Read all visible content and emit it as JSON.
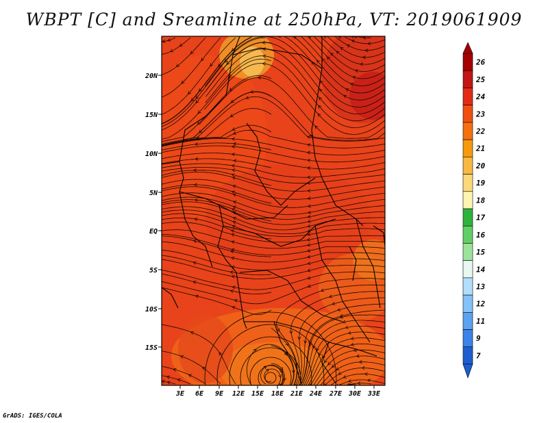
{
  "title": "WBPT [C] and Sreamline at 250hPa, VT: 2019061909",
  "credit": "GrADS: IGES/COLA",
  "map": {
    "lat_labels": [
      "20N",
      "15N",
      "10N",
      "5N",
      "EQ",
      "5S",
      "10S",
      "15S"
    ],
    "lon_labels": [
      "3E",
      "6E",
      "9E",
      "12E",
      "15E",
      "18E",
      "21E",
      "24E",
      "27E",
      "30E",
      "33E"
    ]
  },
  "colorbar": {
    "labels": [
      "26",
      "25",
      "24",
      "23",
      "22",
      "21",
      "20",
      "19",
      "18",
      "17",
      "16",
      "15",
      "14",
      "13",
      "12",
      "11",
      "9",
      "7"
    ],
    "colors": [
      "#a50000",
      "#c31616",
      "#e22b14",
      "#f0500f",
      "#f57010",
      "#f5990e",
      "#f7b943",
      "#fbd97a",
      "#fdf4b1",
      "#2fb33b",
      "#62cf66",
      "#9ce39a",
      "#e6f8f0",
      "#b3defb",
      "#84c2f8",
      "#5ba2f1",
      "#3b83e8",
      "#1d5ecf"
    ]
  }
}
